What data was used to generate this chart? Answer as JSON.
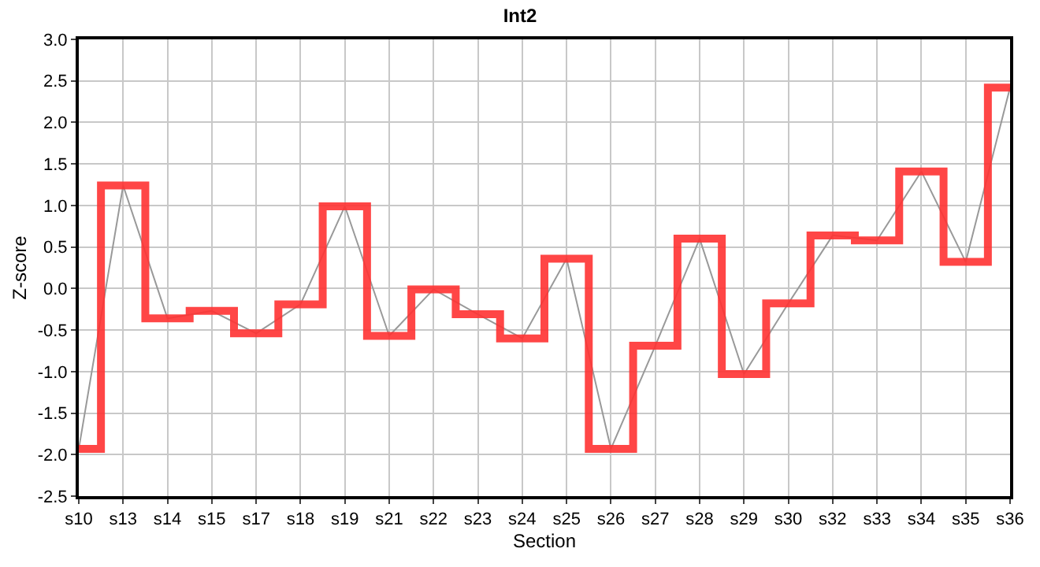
{
  "chart_data": {
    "type": "step",
    "title": "Int2",
    "xlabel": "Section",
    "ylabel": "Z-score",
    "categories": [
      "s10",
      "s13",
      "s14",
      "s15",
      "s17",
      "s18",
      "s19",
      "s21",
      "s22",
      "s23",
      "s24",
      "s25",
      "s26",
      "s27",
      "s28",
      "s29",
      "s30",
      "s32",
      "s33",
      "s34",
      "s35",
      "s36"
    ],
    "series": [
      {
        "type": "line",
        "color": "#999999",
        "values": [
          -1.93,
          1.24,
          -0.36,
          -0.27,
          -0.54,
          -0.19,
          0.99,
          -0.57,
          -0.01,
          -0.31,
          -0.6,
          0.36,
          -1.93,
          -0.69,
          0.6,
          -1.03,
          -0.18,
          0.64,
          0.58,
          1.41,
          0.32,
          2.42
        ]
      },
      {
        "color": "#ff3333",
        "values": [
          -1.93,
          1.24,
          -0.36,
          -0.27,
          -0.54,
          -0.19,
          0.99,
          -0.57,
          -0.01,
          -0.31,
          -0.6,
          0.36,
          -1.93,
          -0.69,
          0.6,
          -1.03,
          -0.18,
          0.64,
          0.58,
          1.41,
          0.32,
          2.42
        ]
      }
    ],
    "ylim": [
      -2.5,
      3.0
    ],
    "yticks": [
      {
        "value": -2.5,
        "label": "-2.5"
      },
      {
        "value": -2.0,
        "label": "-2.0"
      },
      {
        "value": -1.5,
        "label": "-1.5"
      },
      {
        "value": -1.0,
        "label": "-1.0"
      },
      {
        "value": -0.5,
        "label": "-0.5"
      },
      {
        "value": 0,
        "label": "0.0"
      },
      {
        "value": 0.5,
        "label": "0.5"
      },
      {
        "value": 1.0,
        "label": "1.0"
      },
      {
        "value": 1.5,
        "label": "1.5"
      },
      {
        "value": 2.0,
        "label": "2.0"
      },
      {
        "value": 2.5,
        "label": "2.5"
      },
      {
        "value": 3.0,
        "label": "3.0"
      }
    ],
    "grid": true
  }
}
